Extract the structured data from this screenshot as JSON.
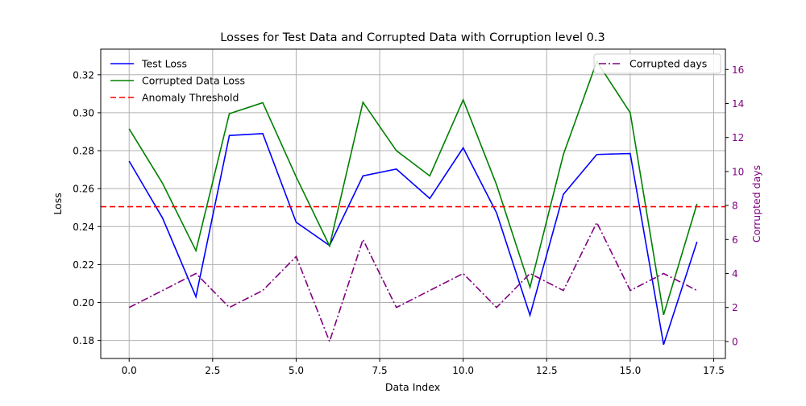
{
  "chart_data": {
    "type": "line",
    "title": "Losses for Test Data and Corrupted Data with Corruption level 0.3",
    "xlabel": "Data Index",
    "ylabel": "Loss",
    "y2label": "Corrupted days",
    "xlim": [
      -0.85,
      17.85
    ],
    "ylim": [
      0.1705,
      0.3335
    ],
    "y2lim": [
      -1.0,
      17.2
    ],
    "xticks": [
      0.0,
      2.5,
      5.0,
      7.5,
      10.0,
      12.5,
      15.0,
      17.5
    ],
    "xtick_labels": [
      "0.0",
      "2.5",
      "5.0",
      "7.5",
      "10.0",
      "12.5",
      "15.0",
      "17.5"
    ],
    "yticks": [
      0.18,
      0.2,
      0.22,
      0.24,
      0.26,
      0.28,
      0.3,
      0.32
    ],
    "ytick_labels": [
      "0.18",
      "0.20",
      "0.22",
      "0.24",
      "0.26",
      "0.28",
      "0.30",
      "0.32"
    ],
    "y2ticks": [
      0,
      2,
      4,
      6,
      8,
      10,
      12,
      14,
      16
    ],
    "y2tick_labels": [
      "0",
      "2",
      "4",
      "6",
      "8",
      "10",
      "12",
      "14",
      "16"
    ],
    "grid": true,
    "x": [
      0,
      1,
      2,
      3,
      4,
      5,
      6,
      7,
      8,
      9,
      10,
      11,
      12,
      13,
      14,
      15,
      16,
      17
    ],
    "series": [
      {
        "name": "Test Loss",
        "axis": "left",
        "color": "#0000ff",
        "style": "solid",
        "values": [
          0.2745,
          0.2445,
          0.203,
          0.288,
          0.289,
          0.2423,
          0.23,
          0.2667,
          0.2703,
          0.2548,
          0.2815,
          0.2472,
          0.1933,
          0.257,
          0.278,
          0.2785,
          0.1778,
          0.232
        ]
      },
      {
        "name": "Corrupted Data Loss",
        "axis": "left",
        "color": "#008000",
        "style": "solid",
        "values": [
          0.2915,
          0.2628,
          0.2273,
          0.2995,
          0.3053,
          0.2662,
          0.2298,
          0.3055,
          0.28,
          0.2667,
          0.3068,
          0.262,
          0.208,
          0.278,
          0.327,
          0.3,
          0.1935,
          0.252
        ]
      },
      {
        "name": "Corrupted days",
        "axis": "right",
        "color": "#800080",
        "style": "dashdot",
        "values": [
          2,
          3,
          4,
          2,
          3,
          5,
          0,
          6,
          2,
          3,
          4,
          2,
          4,
          3,
          7,
          3,
          4,
          3
        ]
      }
    ],
    "threshold": {
      "name": "Anomaly Threshold",
      "value": 0.2505,
      "color": "#ff0000",
      "style": "dashed"
    },
    "legend_left": "top-left",
    "legend_right": "top-right"
  }
}
